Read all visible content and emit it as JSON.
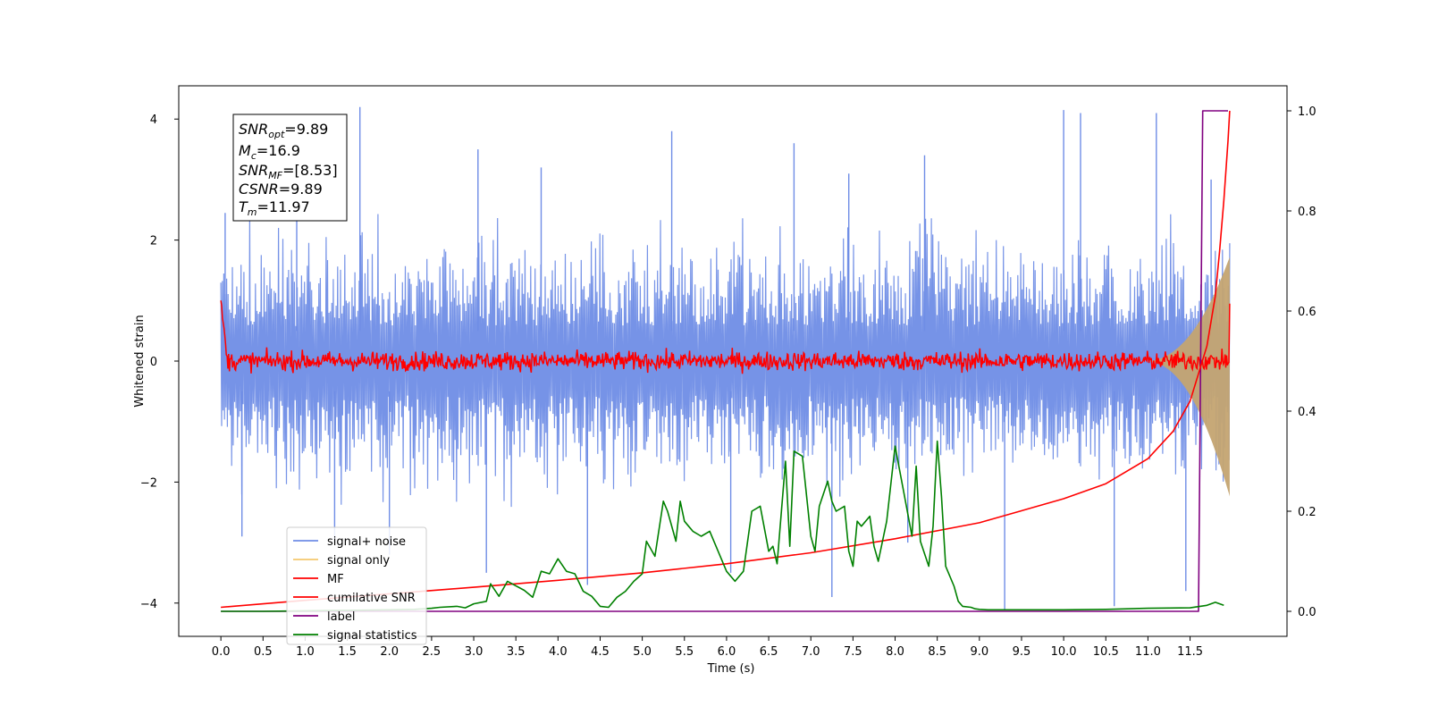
{
  "chart_data": {
    "type": "line",
    "xlabel": "Time (s)",
    "ylabel": "Whitened strain",
    "xlim": [
      -0.5,
      12.65
    ],
    "ylim": [
      -4.55,
      4.55
    ],
    "y2lim": [
      -0.05,
      1.05
    ],
    "x_ticks": [
      0.0,
      0.5,
      1.0,
      1.5,
      2.0,
      2.5,
      3.0,
      3.5,
      4.0,
      4.5,
      5.0,
      5.5,
      6.0,
      6.5,
      7.0,
      7.5,
      8.0,
      8.5,
      9.0,
      9.5,
      10.0,
      10.5,
      11.0,
      11.5
    ],
    "x_tick_labels": [
      "0.0",
      "0.5",
      "1.0",
      "1.5",
      "2.0",
      "2.5",
      "3.0",
      "3.5",
      "4.0",
      "4.5",
      "5.0",
      "5.5",
      "6.0",
      "6.5",
      "7.0",
      "7.5",
      "8.0",
      "8.5",
      "9.0",
      "9.5",
      "10.0",
      "10.5",
      "11.0",
      "11.5"
    ],
    "y_ticks": [
      -4,
      -2,
      0,
      2,
      4
    ],
    "y_tick_labels": [
      "−4",
      "−2",
      "0",
      "2",
      "4"
    ],
    "y2_ticks": [
      0.0,
      0.2,
      0.4,
      0.6,
      0.8,
      1.0
    ],
    "y2_tick_labels": [
      "0.0",
      "0.2",
      "0.4",
      "0.6",
      "0.8",
      "1.0"
    ],
    "grid": false,
    "legend_position": "lower-left",
    "info_box": {
      "snr_opt": {
        "symbol": "SNR",
        "subscript": "opt",
        "value": "=9.89"
      },
      "mc": {
        "symbol": "M",
        "subscript": "c",
        "value": "=16.9"
      },
      "snr_mf": {
        "symbol": "SNR",
        "subscript": "MF",
        "value": "=[8.53]"
      },
      "csnr": {
        "symbol": "CSNR",
        "subscript": "",
        "value": "=9.89"
      },
      "tm": {
        "symbol": "T",
        "subscript": "m",
        "value": "=11.97"
      }
    },
    "series": [
      {
        "name": "signal+ noise",
        "color": "#6f8de6",
        "axis": "left",
        "style": "noise",
        "x_range": [
          0.0,
          11.97
        ],
        "envelope_sigma": 0.95,
        "spikes": [
          [
            0.05,
            2.45
          ],
          [
            0.25,
            -2.9
          ],
          [
            0.9,
            3.3
          ],
          [
            1.35,
            -3.0
          ],
          [
            1.65,
            4.2
          ],
          [
            2.0,
            -3.2
          ],
          [
            3.05,
            3.5
          ],
          [
            3.15,
            -3.5
          ],
          [
            3.8,
            3.2
          ],
          [
            4.35,
            -3.7
          ],
          [
            5.35,
            3.8
          ],
          [
            6.05,
            -3.5
          ],
          [
            6.8,
            3.6
          ],
          [
            7.25,
            -3.9
          ],
          [
            7.45,
            3.1
          ],
          [
            8.15,
            -3.0
          ],
          [
            8.35,
            3.4
          ],
          [
            9.3,
            -4.1
          ],
          [
            10.0,
            4.15
          ],
          [
            10.2,
            4.1
          ],
          [
            10.6,
            -4.05
          ],
          [
            11.1,
            4.1
          ],
          [
            11.45,
            -3.8
          ],
          [
            11.75,
            3.0
          ]
        ]
      },
      {
        "name": "signal only",
        "color": "#f5c86e",
        "axis": "left",
        "style": "chirp",
        "x_range": [
          11.0,
          11.97
        ],
        "peak_amplitude": 1.6
      },
      {
        "name": "MF",
        "color": "#ff0000",
        "axis": "left",
        "style": "mf",
        "x_range": [
          0.0,
          11.97
        ],
        "start_value": 1.0,
        "noise_amplitude": 0.14,
        "end_spike": 0.95
      },
      {
        "name": "cumilative SNR",
        "color": "#ff0000",
        "axis": "right",
        "style": "line",
        "x": [
          0.0,
          1.0,
          2.0,
          3.0,
          4.0,
          5.0,
          6.0,
          7.0,
          8.0,
          9.0,
          10.0,
          10.5,
          11.0,
          11.3,
          11.5,
          11.7,
          11.8,
          11.85,
          11.9,
          11.95,
          11.97
        ],
        "y": [
          0.008,
          0.022,
          0.035,
          0.048,
          0.062,
          0.077,
          0.095,
          0.117,
          0.145,
          0.177,
          0.225,
          0.255,
          0.305,
          0.36,
          0.42,
          0.53,
          0.63,
          0.72,
          0.82,
          0.94,
          1.0
        ]
      },
      {
        "name": "label",
        "color": "#800080",
        "axis": "right",
        "style": "step",
        "x": [
          0.0,
          11.6,
          11.65,
          11.95
        ],
        "y": [
          0.0,
          0.0,
          1.0,
          1.0
        ]
      },
      {
        "name": "signal statistics",
        "color": "#008000",
        "axis": "right",
        "style": "line",
        "x": [
          0.0,
          0.5,
          1.0,
          1.5,
          2.0,
          2.3,
          2.5,
          2.6,
          2.8,
          2.9,
          3.0,
          3.15,
          3.2,
          3.3,
          3.4,
          3.6,
          3.7,
          3.8,
          3.9,
          4.0,
          4.1,
          4.2,
          4.3,
          4.4,
          4.5,
          4.6,
          4.7,
          4.8,
          4.9,
          5.0,
          5.05,
          5.15,
          5.25,
          5.3,
          5.4,
          5.45,
          5.5,
          5.55,
          5.6,
          5.7,
          5.8,
          5.9,
          6.0,
          6.1,
          6.2,
          6.3,
          6.4,
          6.5,
          6.55,
          6.6,
          6.7,
          6.75,
          6.8,
          6.9,
          7.0,
          7.05,
          7.1,
          7.2,
          7.25,
          7.3,
          7.4,
          7.45,
          7.5,
          7.55,
          7.6,
          7.7,
          7.75,
          7.8,
          7.9,
          8.0,
          8.1,
          8.2,
          8.25,
          8.3,
          8.4,
          8.45,
          8.5,
          8.55,
          8.6,
          8.7,
          8.75,
          8.8,
          8.9,
          8.95,
          9.0,
          9.1,
          9.2,
          9.3,
          9.5,
          9.7,
          10.0,
          10.5,
          11.0,
          11.5,
          11.7,
          11.8,
          11.9
        ],
        "y": [
          0.0,
          0.0,
          0.001,
          0.002,
          0.003,
          0.004,
          0.006,
          0.008,
          0.01,
          0.007,
          0.015,
          0.02,
          0.055,
          0.03,
          0.06,
          0.042,
          0.028,
          0.08,
          0.075,
          0.105,
          0.08,
          0.075,
          0.04,
          0.03,
          0.01,
          0.008,
          0.028,
          0.04,
          0.06,
          0.075,
          0.14,
          0.11,
          0.22,
          0.2,
          0.14,
          0.22,
          0.18,
          0.17,
          0.16,
          0.15,
          0.16,
          0.12,
          0.08,
          0.06,
          0.08,
          0.2,
          0.21,
          0.12,
          0.13,
          0.095,
          0.3,
          0.13,
          0.32,
          0.31,
          0.15,
          0.12,
          0.21,
          0.26,
          0.22,
          0.2,
          0.21,
          0.12,
          0.09,
          0.18,
          0.17,
          0.19,
          0.13,
          0.1,
          0.18,
          0.33,
          0.24,
          0.15,
          0.29,
          0.14,
          0.09,
          0.17,
          0.34,
          0.23,
          0.09,
          0.05,
          0.02,
          0.01,
          0.008,
          0.005,
          0.004,
          0.003,
          0.003,
          0.003,
          0.003,
          0.003,
          0.003,
          0.004,
          0.006,
          0.007,
          0.012,
          0.018,
          0.012
        ]
      }
    ]
  }
}
